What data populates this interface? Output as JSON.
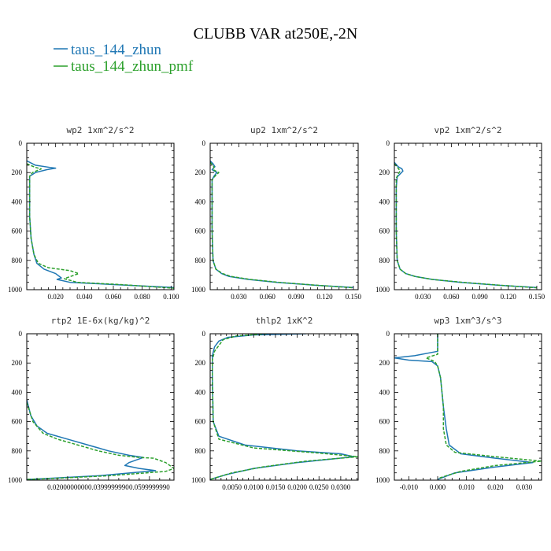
{
  "title": "CLUBB VAR at250E,-2N",
  "legend": [
    {
      "label": "taus_144_zhun",
      "color": "#1f77b4",
      "dash": "solid"
    },
    {
      "label": "taus_144_zhun_pmf",
      "color": "#2ca02c",
      "dash": "dashed"
    }
  ],
  "chart_data": [
    {
      "type": "line",
      "title": "wp2  1xm^2/s^2",
      "xlim": [
        0,
        0.102
      ],
      "ylim": [
        1000,
        0
      ],
      "xticks": [
        0.02,
        0.04,
        0.06,
        0.08,
        0.1
      ],
      "xtick_labels": [
        "0.020",
        "0.040",
        "0.060",
        "0.080",
        "0.100"
      ],
      "yticks": [
        0,
        200,
        400,
        600,
        800,
        1000
      ],
      "ytick_labels": [
        "0",
        "200",
        "400",
        "600",
        "800",
        "1000"
      ],
      "series": [
        {
          "color": "#1f77b4",
          "dash": "solid",
          "points": [
            [
              0.0,
              120
            ],
            [
              0.006,
              150
            ],
            [
              0.016,
              165
            ],
            [
              0.02,
              170
            ],
            [
              0.014,
              180
            ],
            [
              0.006,
              200
            ],
            [
              0.002,
              225
            ],
            [
              0.002,
              300
            ],
            [
              0.002,
              500
            ],
            [
              0.003,
              650
            ],
            [
              0.005,
              760
            ],
            [
              0.007,
              820
            ],
            [
              0.012,
              860
            ],
            [
              0.02,
              890
            ],
            [
              0.024,
              920
            ],
            [
              0.021,
              930
            ],
            [
              0.03,
              950
            ],
            [
              0.06,
              965
            ],
            [
              0.102,
              985
            ]
          ]
        },
        {
          "color": "#2ca02c",
          "dash": "dashed",
          "points": [
            [
              0.0,
              140
            ],
            [
              0.006,
              165
            ],
            [
              0.01,
              175
            ],
            [
              0.004,
              200
            ],
            [
              0.002,
              225
            ],
            [
              0.002,
              300
            ],
            [
              0.002,
              500
            ],
            [
              0.003,
              650
            ],
            [
              0.005,
              760
            ],
            [
              0.008,
              820
            ],
            [
              0.015,
              850
            ],
            [
              0.03,
              870
            ],
            [
              0.036,
              890
            ],
            [
              0.026,
              925
            ],
            [
              0.035,
              950
            ],
            [
              0.065,
              965
            ],
            [
              0.102,
              990
            ]
          ]
        }
      ]
    },
    {
      "type": "line",
      "title": "up2  1xm^2/s^2",
      "xlim": [
        0,
        0.155
      ],
      "ylim": [
        1000,
        0
      ],
      "xticks": [
        0.03,
        0.06,
        0.09,
        0.12,
        0.15
      ],
      "xtick_labels": [
        "0.030",
        "0.060",
        "0.090",
        "0.120",
        "0.150"
      ],
      "yticks": [
        0,
        200,
        400,
        600,
        800,
        1000
      ],
      "ytick_labels": [
        "0",
        "200",
        "400",
        "600",
        "800",
        "1000"
      ],
      "series": [
        {
          "color": "#1f77b4",
          "dash": "solid",
          "points": [
            [
              0.0,
              120
            ],
            [
              0.003,
              140
            ],
            [
              0.005,
              160
            ],
            [
              0.002,
              180
            ],
            [
              0.007,
              200
            ],
            [
              0.004,
              225
            ],
            [
              0.002,
              250
            ],
            [
              0.002,
              400
            ],
            [
              0.002,
              600
            ],
            [
              0.003,
              800
            ],
            [
              0.006,
              860
            ],
            [
              0.012,
              890
            ],
            [
              0.02,
              910
            ],
            [
              0.04,
              930
            ],
            [
              0.07,
              950
            ],
            [
              0.11,
              970
            ],
            [
              0.15,
              985
            ]
          ]
        },
        {
          "color": "#2ca02c",
          "dash": "dashed",
          "points": [
            [
              0.0,
              130
            ],
            [
              0.004,
              160
            ],
            [
              0.003,
              180
            ],
            [
              0.009,
              200
            ],
            [
              0.005,
              225
            ],
            [
              0.002,
              250
            ],
            [
              0.002,
              400
            ],
            [
              0.002,
              600
            ],
            [
              0.003,
              800
            ],
            [
              0.006,
              860
            ],
            [
              0.013,
              890
            ],
            [
              0.022,
              910
            ],
            [
              0.042,
              930
            ],
            [
              0.072,
              950
            ],
            [
              0.112,
              970
            ],
            [
              0.15,
              987
            ]
          ]
        }
      ]
    },
    {
      "type": "line",
      "title": "vp2  1xm^2/s^2",
      "xlim": [
        0,
        0.155
      ],
      "ylim": [
        1000,
        0
      ],
      "xticks": [
        0.03,
        0.06,
        0.09,
        0.12,
        0.15
      ],
      "xtick_labels": [
        "0.030",
        "0.060",
        "0.090",
        "0.120",
        "0.150"
      ],
      "yticks": [
        0,
        200,
        400,
        600,
        800,
        1000
      ],
      "ytick_labels": [
        "0",
        "200",
        "400",
        "600",
        "800",
        "1000"
      ],
      "series": [
        {
          "color": "#1f77b4",
          "dash": "solid",
          "points": [
            [
              0.0,
              130
            ],
            [
              0.004,
              160
            ],
            [
              0.008,
              175
            ],
            [
              0.009,
              190
            ],
            [
              0.006,
              210
            ],
            [
              0.003,
              230
            ],
            [
              0.002,
              300
            ],
            [
              0.002,
              600
            ],
            [
              0.003,
              800
            ],
            [
              0.006,
              860
            ],
            [
              0.012,
              890
            ],
            [
              0.022,
              910
            ],
            [
              0.04,
              930
            ],
            [
              0.07,
              950
            ],
            [
              0.11,
              970
            ],
            [
              0.15,
              985
            ]
          ]
        },
        {
          "color": "#2ca02c",
          "dash": "dashed",
          "points": [
            [
              0.0,
              140
            ],
            [
              0.004,
              170
            ],
            [
              0.006,
              190
            ],
            [
              0.004,
              210
            ],
            [
              0.002,
              240
            ],
            [
              0.002,
              600
            ],
            [
              0.003,
              800
            ],
            [
              0.006,
              860
            ],
            [
              0.012,
              890
            ],
            [
              0.022,
              910
            ],
            [
              0.04,
              930
            ],
            [
              0.072,
              950
            ],
            [
              0.112,
              970
            ],
            [
              0.15,
              987
            ]
          ]
        }
      ]
    },
    {
      "type": "line",
      "title": "rtp2  1E-6x(kg/kg)^2",
      "xlim": [
        0,
        0.072
      ],
      "ylim": [
        1000,
        0
      ],
      "xticks": [
        0.02,
        0.04,
        0.06
      ],
      "xtick_labels": [
        "0.0200000000",
        "0.0399999990",
        "0.0599999990"
      ],
      "yticks": [
        0,
        200,
        400,
        600,
        800,
        1000
      ],
      "ytick_labels": [
        "0",
        "200",
        "400",
        "600",
        "800",
        "1000"
      ],
      "series": [
        {
          "color": "#1f77b4",
          "dash": "solid",
          "points": [
            [
              0.0,
              450
            ],
            [
              0.002,
              560
            ],
            [
              0.005,
              630
            ],
            [
              0.01,
              680
            ],
            [
              0.02,
              720
            ],
            [
              0.03,
              760
            ],
            [
              0.04,
              800
            ],
            [
              0.05,
              830
            ],
            [
              0.057,
              845
            ],
            [
              0.05,
              880
            ],
            [
              0.048,
              900
            ],
            [
              0.055,
              920
            ],
            [
              0.063,
              935
            ],
            [
              0.035,
              970
            ],
            [
              0.008,
              990
            ],
            [
              0.0,
              995
            ]
          ]
        },
        {
          "color": "#2ca02c",
          "dash": "dashed",
          "points": [
            [
              0.0,
              470
            ],
            [
              0.003,
              600
            ],
            [
              0.008,
              680
            ],
            [
              0.015,
              720
            ],
            [
              0.025,
              760
            ],
            [
              0.035,
              800
            ],
            [
              0.045,
              830
            ],
            [
              0.055,
              845
            ],
            [
              0.062,
              850
            ],
            [
              0.068,
              880
            ],
            [
              0.072,
              920
            ],
            [
              0.068,
              940
            ],
            [
              0.04,
              970
            ],
            [
              0.01,
              990
            ],
            [
              0.0,
              995
            ]
          ]
        }
      ]
    },
    {
      "type": "line",
      "title": "thlp2  1xK^2",
      "xlim": [
        0,
        0.034
      ],
      "ylim": [
        1000,
        0
      ],
      "xticks": [
        0.005,
        0.01,
        0.015,
        0.02,
        0.025,
        0.03
      ],
      "xtick_labels": [
        "0.0050",
        "0.0100",
        "0.0150",
        "0.0200",
        "0.0250",
        "0.0300"
      ],
      "yticks": [
        0,
        200,
        400,
        600,
        800,
        1000
      ],
      "ytick_labels": [
        "0",
        "200",
        "400",
        "600",
        "800",
        "1000"
      ],
      "series": [
        {
          "color": "#1f77b4",
          "dash": "solid",
          "points": [
            [
              0.022,
              0
            ],
            [
              0.01,
              8
            ],
            [
              0.004,
              25
            ],
            [
              0.002,
              50
            ],
            [
              0.001,
              90
            ],
            [
              0.0005,
              150
            ],
            [
              0.0005,
              300
            ],
            [
              0.0007,
              600
            ],
            [
              0.002,
              700
            ],
            [
              0.008,
              760
            ],
            [
              0.02,
              800
            ],
            [
              0.03,
              820
            ],
            [
              0.033,
              840
            ],
            [
              0.02,
              880
            ],
            [
              0.01,
              920
            ],
            [
              0.004,
              960
            ],
            [
              0.0,
              995
            ]
          ]
        },
        {
          "color": "#2ca02c",
          "dash": "dashed",
          "points": [
            [
              0.013,
              0
            ],
            [
              0.006,
              15
            ],
            [
              0.003,
              40
            ],
            [
              0.002,
              80
            ],
            [
              0.001,
              120
            ],
            [
              0.0005,
              180
            ],
            [
              0.0005,
              300
            ],
            [
              0.0007,
              600
            ],
            [
              0.002,
              720
            ],
            [
              0.01,
              780
            ],
            [
              0.025,
              815
            ],
            [
              0.034,
              840
            ],
            [
              0.022,
              870
            ],
            [
              0.012,
              910
            ],
            [
              0.005,
              950
            ],
            [
              0.0,
              995
            ]
          ]
        }
      ]
    },
    {
      "type": "line",
      "title": "wp3  1xm^3/s^3",
      "xlim": [
        -0.015,
        0.036
      ],
      "ylim": [
        1000,
        0
      ],
      "xticks": [
        -0.01,
        0.0,
        0.01,
        0.02,
        0.03
      ],
      "xtick_labels": [
        "-0.010",
        "0.000",
        "0.010",
        "0.020",
        "0.030"
      ],
      "yticks": [
        0,
        200,
        400,
        600,
        800,
        1000
      ],
      "ytick_labels": [
        "0",
        "200",
        "400",
        "600",
        "800",
        "1000"
      ],
      "series": [
        {
          "color": "#1f77b4",
          "dash": "solid",
          "points": [
            [
              0.0,
              0
            ],
            [
              0.0,
              120
            ],
            [
              -0.008,
              150
            ],
            [
              -0.015,
              165
            ],
            [
              -0.01,
              180
            ],
            [
              -0.002,
              190
            ],
            [
              0.0,
              220
            ],
            [
              0.001,
              300
            ],
            [
              0.002,
              500
            ],
            [
              0.003,
              650
            ],
            [
              0.004,
              760
            ],
            [
              0.008,
              820
            ],
            [
              0.02,
              850
            ],
            [
              0.033,
              880
            ],
            [
              0.02,
              910
            ],
            [
              0.006,
              950
            ],
            [
              0.002,
              980
            ],
            [
              0.0,
              995
            ]
          ]
        },
        {
          "color": "#2ca02c",
          "dash": "dashed",
          "points": [
            [
              0.0,
              0
            ],
            [
              0.0,
              140
            ],
            [
              -0.004,
              165
            ],
            [
              -0.001,
              190
            ],
            [
              0.0,
              220
            ],
            [
              0.001,
              300
            ],
            [
              0.002,
              500
            ],
            [
              0.002,
              650
            ],
            [
              0.003,
              760
            ],
            [
              0.006,
              810
            ],
            [
              0.02,
              840
            ],
            [
              0.036,
              870
            ],
            [
              0.02,
              900
            ],
            [
              0.008,
              940
            ],
            [
              0.003,
              970
            ],
            [
              0.0,
              990
            ]
          ]
        }
      ]
    }
  ]
}
